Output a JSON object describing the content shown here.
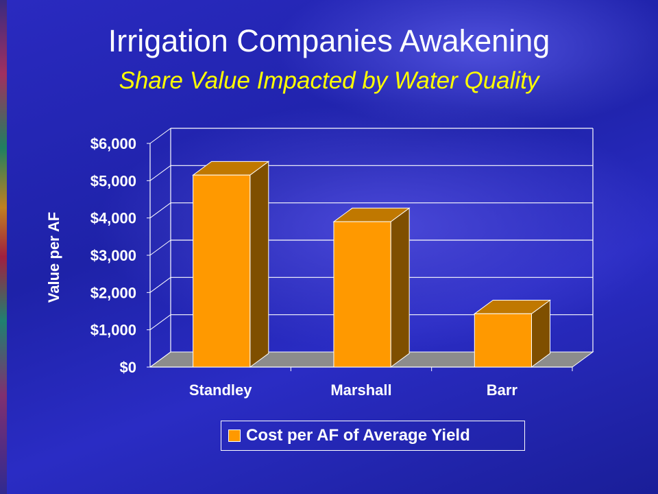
{
  "title": "Irrigation Companies Awakening",
  "subtitle": "Share Value Impacted by Water Quality",
  "chart_data": {
    "type": "bar",
    "3d": true,
    "categories": [
      "Standley",
      "Marshall",
      "Barr"
    ],
    "series": [
      {
        "name": "Cost per AF of Average Yield",
        "values": [
          5150,
          3900,
          1430
        ]
      }
    ],
    "xlabel": "",
    "ylabel": "Value per AF",
    "ylim": [
      0,
      6000
    ],
    "yticks": [
      "$0",
      "$1,000",
      "$2,000",
      "$3,000",
      "$4,000",
      "$5,000",
      "$6,000"
    ],
    "grid": true,
    "legend": "bottom",
    "colors": {
      "bar_front": "#ff9900",
      "bar_top": "#c07800",
      "bar_side": "#7f4f00",
      "floor": "#8c8c8c"
    }
  }
}
